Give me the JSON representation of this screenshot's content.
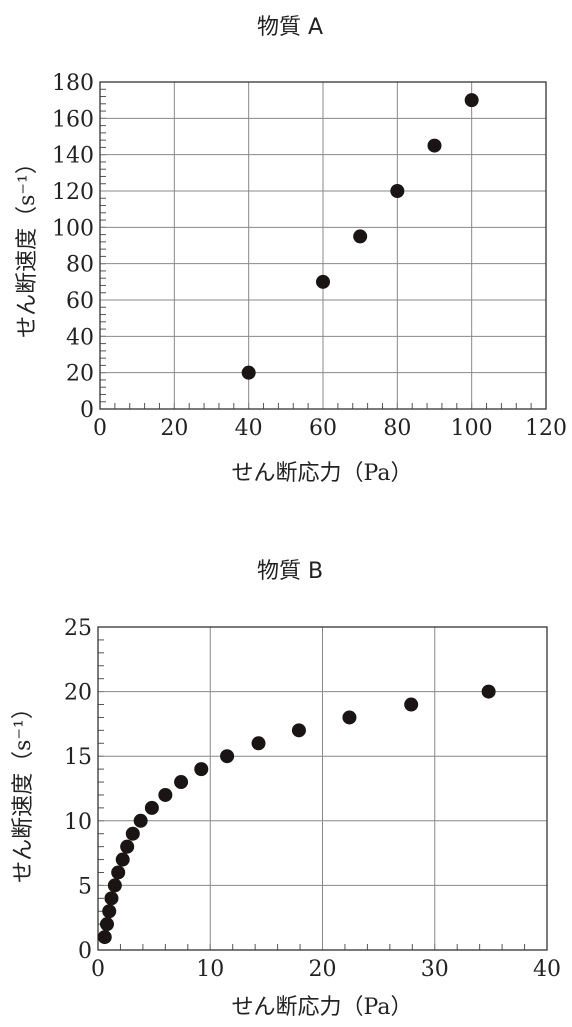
{
  "chart_data": [
    {
      "type": "scatter",
      "title": "物質 A",
      "xlabel": "せん断応力（Pa）",
      "ylabel": "せん断速度（s⁻¹）",
      "xlim": [
        0,
        120
      ],
      "ylim": [
        0,
        180
      ],
      "xticks": [
        0,
        20,
        40,
        60,
        80,
        100,
        120
      ],
      "yticks": [
        0,
        20,
        40,
        60,
        80,
        100,
        120,
        140,
        160,
        180
      ],
      "x_minor_step": 4,
      "y_minor_step": 4,
      "grid": true,
      "marker_color": "#1a1414",
      "points": [
        {
          "x": 40,
          "y": 20
        },
        {
          "x": 60,
          "y": 70
        },
        {
          "x": 70,
          "y": 95
        },
        {
          "x": 80,
          "y": 120
        },
        {
          "x": 90,
          "y": 145
        },
        {
          "x": 100,
          "y": 170
        }
      ]
    },
    {
      "type": "scatter",
      "title": "物質 B",
      "xlabel": "せん断応力（Pa）",
      "ylabel": "せん断速度（s⁻¹）",
      "xlim": [
        0,
        40
      ],
      "ylim": [
        0,
        25
      ],
      "xticks": [
        0,
        10,
        20,
        30,
        40
      ],
      "yticks": [
        0,
        5,
        10,
        15,
        20,
        25
      ],
      "x_minor_step": 2,
      "y_minor_step": 1,
      "grid": true,
      "marker_color": "#1a1414",
      "points": [
        {
          "x": 0.6,
          "y": 1
        },
        {
          "x": 0.8,
          "y": 2
        },
        {
          "x": 1.0,
          "y": 3
        },
        {
          "x": 1.2,
          "y": 4
        },
        {
          "x": 1.5,
          "y": 5
        },
        {
          "x": 1.8,
          "y": 6
        },
        {
          "x": 2.2,
          "y": 7
        },
        {
          "x": 2.6,
          "y": 8
        },
        {
          "x": 3.1,
          "y": 9
        },
        {
          "x": 3.8,
          "y": 10
        },
        {
          "x": 4.8,
          "y": 11
        },
        {
          "x": 6.0,
          "y": 12
        },
        {
          "x": 7.4,
          "y": 13
        },
        {
          "x": 9.2,
          "y": 14
        },
        {
          "x": 11.5,
          "y": 15
        },
        {
          "x": 14.3,
          "y": 16
        },
        {
          "x": 17.9,
          "y": 17
        },
        {
          "x": 22.4,
          "y": 18
        },
        {
          "x": 27.9,
          "y": 19
        },
        {
          "x": 34.8,
          "y": 20
        }
      ]
    }
  ]
}
